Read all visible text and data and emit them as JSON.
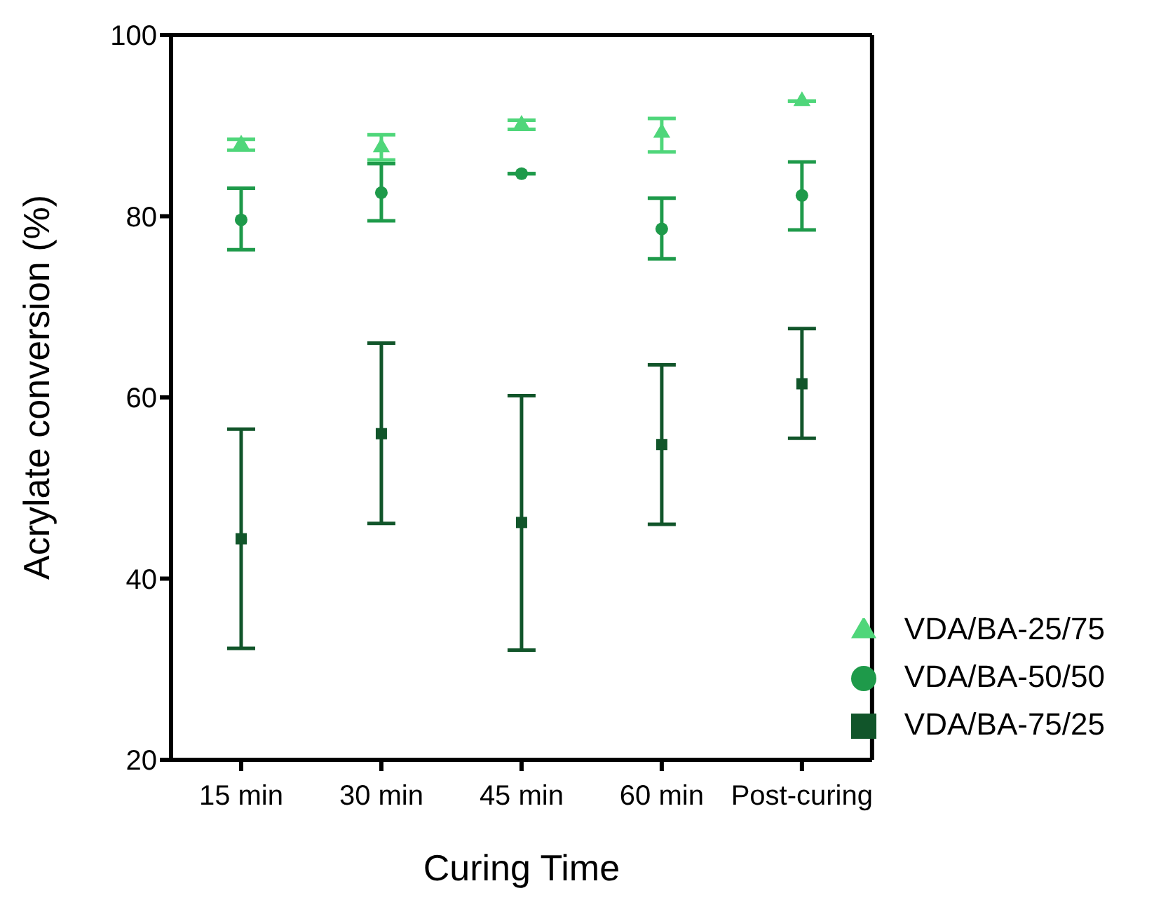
{
  "chart_data": {
    "type": "scatter",
    "categories": [
      "15 min",
      "30 min",
      "45 min",
      "60 min",
      "Post-curing"
    ],
    "xlabel": "Curing Time",
    "ylabel": "Acrylate conversion (%)",
    "ylim": [
      20,
      100
    ],
    "yticks": [
      20,
      40,
      60,
      80,
      100
    ],
    "grid": false,
    "legend": "bottom right",
    "series": [
      {
        "name": "VDA/BA-25/75",
        "color": "#4fd67a",
        "marker": "triangle",
        "values": [
          87.9,
          87.6,
          90.1,
          89.2,
          92.7
        ],
        "errors": [
          0.6,
          1.4,
          0.5,
          [
            87.1,
            90.8
          ],
          null
        ]
      },
      {
        "name": "VDA/BA-50/50",
        "color": "#1e9a4a",
        "marker": "circle",
        "values": [
          79.6,
          82.6,
          84.7,
          78.6,
          82.3
        ],
        "errors": [
          [
            76.3,
            83.1
          ],
          [
            79.5,
            85.8
          ],
          null,
          [
            75.3,
            82.0
          ],
          [
            78.5,
            86.0
          ]
        ]
      },
      {
        "name": "VDA/BA-75/25",
        "color": "#11552a",
        "marker": "square",
        "values": [
          44.4,
          56.0,
          46.2,
          54.8,
          61.5
        ],
        "errors": [
          [
            32.3,
            56.5
          ],
          [
            46.1,
            66.0
          ],
          [
            32.1,
            60.2
          ],
          [
            46.0,
            63.6
          ],
          [
            55.5,
            67.6
          ]
        ]
      }
    ]
  }
}
